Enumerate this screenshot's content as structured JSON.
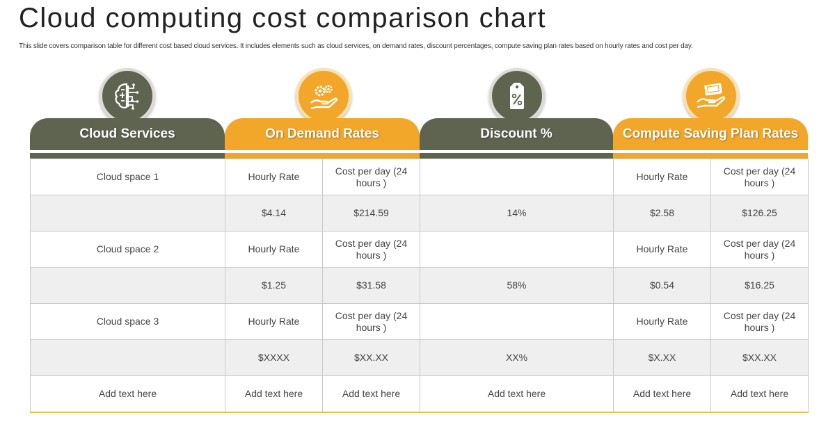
{
  "title": "Cloud computing cost comparison chart",
  "subtitle": "This slide covers comparison table for different cost based cloud services. It includes elements such as cloud services, on demand rates, discount percentages, compute saving plan rates based on hourly rates and cost per day.",
  "colors": {
    "dark": "#5f6450",
    "orange": "#f2a72b",
    "shade": "#efefef"
  },
  "headers": [
    {
      "label": "Cloud Services",
      "icon": "brain-circuit-icon"
    },
    {
      "label": "On Demand Rates",
      "icon": "hand-gears-icon"
    },
    {
      "label": "Discount %",
      "icon": "percent-tag-icon"
    },
    {
      "label": "Compute Saving Plan Rates",
      "icon": "hand-money-icon"
    }
  ],
  "rows": [
    [
      "Cloud space 1",
      "Hourly Rate",
      "Cost per day (24 hours )",
      "",
      "Hourly Rate",
      "Cost per day (24 hours )"
    ],
    [
      "",
      "$4.14",
      "$214.59",
      "14%",
      "$2.58",
      "$126.25"
    ],
    [
      "Cloud space 2",
      "Hourly Rate",
      "Cost per day (24 hours )",
      "",
      "Hourly Rate",
      "Cost per day (24 hours )"
    ],
    [
      "",
      "$1.25",
      "$31.58",
      "58%",
      "$0.54",
      "$16.25"
    ],
    [
      "Cloud space 3",
      "Hourly Rate",
      "Cost per day (24 hours )",
      "",
      "Hourly Rate",
      "Cost per day (24 hours )"
    ],
    [
      "",
      "$XXXX",
      "$XX.XX",
      "XX%",
      "$X.XX",
      "$XX.XX"
    ],
    [
      "Add text here",
      "Add text here",
      "Add text here",
      "Add text here",
      "Add text here",
      "Add text here"
    ]
  ]
}
